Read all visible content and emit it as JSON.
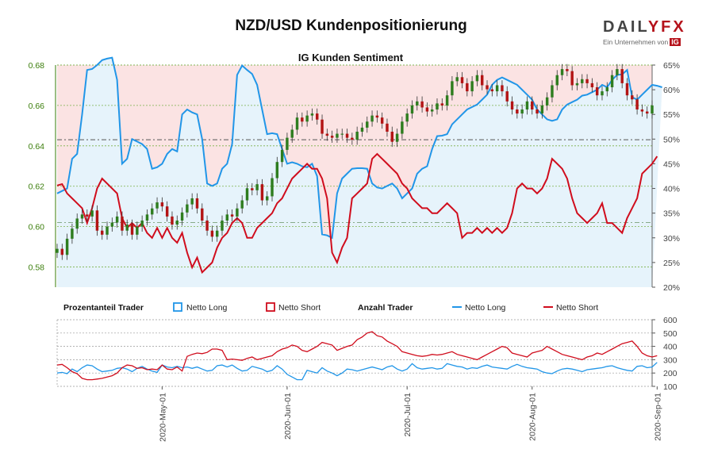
{
  "header": {
    "title": "NZD/USD Kundenpositionierung",
    "logo_text": "DAILYFX",
    "logo_subtext": "Ein Unternehmen von",
    "logo_badge": "IG"
  },
  "colors": {
    "long": "#2196e8",
    "short": "#d00d1d",
    "long_fill": "#e6f3fb",
    "short_fill": "#fbe3e3",
    "candle_up": "#2e7d1f",
    "candle_down": "#b31414",
    "left_axis": "#3a7d0a",
    "grid": "#7bb24a"
  },
  "chart_data": [
    {
      "type": "line",
      "title": "IG Kunden Sentiment",
      "price_axis": {
        "ylim": [
          0.57,
          0.68
        ],
        "ticks": [
          0.58,
          0.6,
          0.62,
          0.64,
          0.66,
          0.68
        ]
      },
      "percent_axis": {
        "ylim": [
          20,
          65
        ],
        "ticks": [
          "20%",
          "25%",
          "30%",
          "35%",
          "40%",
          "45%",
          "50%",
          "55%",
          "60%",
          "65%"
        ]
      },
      "reference_lines": {
        "price": 0.643,
        "percent": 50,
        "price_low": 0.602
      },
      "close": [
        0.589,
        0.586,
        0.594,
        0.599,
        0.604,
        0.606,
        0.605,
        0.608,
        0.598,
        0.596,
        0.6,
        0.602,
        0.605,
        0.598,
        0.601,
        0.596,
        0.6,
        0.603,
        0.606,
        0.609,
        0.612,
        0.61,
        0.605,
        0.601,
        0.603,
        0.607,
        0.611,
        0.614,
        0.609,
        0.603,
        0.598,
        0.595,
        0.598,
        0.603,
        0.606,
        0.605,
        0.609,
        0.613,
        0.619,
        0.618,
        0.621,
        0.613,
        0.615,
        0.624,
        0.632,
        0.638,
        0.644,
        0.648,
        0.654,
        0.652,
        0.655,
        0.656,
        0.653,
        0.646,
        0.645,
        0.644,
        0.646,
        0.646,
        0.644,
        0.643,
        0.647,
        0.649,
        0.652,
        0.655,
        0.654,
        0.651,
        0.647,
        0.642,
        0.646,
        0.652,
        0.656,
        0.66,
        0.662,
        0.659,
        0.657,
        0.658,
        0.661,
        0.66,
        0.665,
        0.672,
        0.674,
        0.671,
        0.667,
        0.672,
        0.675,
        0.67,
        0.668,
        0.667,
        0.67,
        0.667,
        0.662,
        0.658,
        0.656,
        0.658,
        0.662,
        0.658,
        0.656,
        0.66,
        0.664,
        0.67,
        0.675,
        0.678,
        0.677,
        0.67,
        0.671,
        0.673,
        0.671,
        0.669,
        0.665,
        0.667,
        0.669,
        0.675,
        0.678,
        0.671,
        0.665,
        0.663,
        0.658,
        0.657,
        0.656,
        0.66
      ],
      "series": [
        {
          "name": "Netto Long",
          "values": [
            39,
            39.5,
            40,
            46,
            47,
            55,
            64,
            64.2,
            65,
            66,
            66.3,
            66.5,
            62,
            45,
            46,
            50,
            49.5,
            49,
            48,
            44,
            44.3,
            45,
            47,
            48,
            47.5,
            55,
            56,
            55.4,
            55,
            50,
            41,
            40.5,
            41,
            44,
            45,
            49,
            63,
            64.9,
            64,
            63.2,
            61,
            56,
            51,
            51.2,
            51,
            48,
            45,
            45.3,
            45,
            44.5,
            44.3,
            45,
            42.5,
            30.7,
            30.5,
            30,
            39,
            42,
            43,
            44,
            44.1,
            44.1,
            44,
            41,
            40.2,
            40,
            40.5,
            41,
            40,
            38,
            39,
            40,
            43,
            44,
            44.5,
            48,
            50.6,
            50.7,
            51,
            53,
            54,
            55,
            56,
            56.5,
            57,
            58,
            59,
            61,
            62,
            62.5,
            62,
            61.5,
            61,
            60,
            59,
            58,
            56,
            55,
            54,
            53.7,
            54,
            56,
            57,
            57.5,
            58,
            58.8,
            59,
            59.5,
            60,
            61,
            60.5,
            62,
            63,
            63.1,
            64,
            58.5,
            58,
            59,
            60,
            61,
            60.8,
            60.5
          ]
        },
        {
          "name": "Netto Short",
          "values": [
            40.6,
            40.9,
            39,
            38,
            37,
            36,
            33,
            36,
            40,
            42,
            41,
            40,
            39,
            34,
            32,
            33,
            32,
            33,
            31,
            30,
            32,
            30,
            32,
            30,
            29,
            31,
            27,
            24,
            26,
            23,
            24,
            25,
            28,
            30,
            31,
            33,
            34,
            33,
            30,
            30,
            32,
            33,
            34,
            35,
            37,
            38,
            40,
            42,
            43,
            44,
            45,
            44,
            44,
            42,
            38,
            27,
            25,
            28,
            30,
            38,
            39,
            40,
            41,
            46,
            47,
            46,
            45,
            44,
            43,
            41,
            40,
            38,
            37,
            36,
            36,
            35,
            35,
            36,
            37,
            36,
            35,
            30,
            31,
            31,
            32,
            31,
            32,
            31,
            32,
            31,
            32,
            35,
            40,
            41,
            40,
            40,
            39,
            40,
            42,
            46,
            45,
            44,
            42,
            38,
            35,
            34,
            33,
            34,
            35,
            37,
            33,
            33,
            32,
            31,
            34,
            36,
            38,
            43,
            44,
            45,
            46.5
          ]
        }
      ]
    },
    {
      "type": "line",
      "title": "Anzahl Trader",
      "ylim": [
        100,
        600
      ],
      "yticks": [
        100,
        200,
        300,
        400,
        500,
        600
      ],
      "series": [
        {
          "name": "Netto Long",
          "values": [
            200,
            205,
            195,
            230,
            210,
            240,
            260,
            255,
            230,
            210,
            215,
            220,
            235,
            240,
            230,
            210,
            235,
            250,
            230,
            215,
            205,
            260,
            245,
            240,
            250,
            240,
            245,
            235,
            245,
            230,
            215,
            220,
            255,
            260,
            245,
            260,
            235,
            215,
            220,
            250,
            240,
            230,
            210,
            220,
            255,
            230,
            190,
            170,
            150,
            150,
            220,
            210,
            200,
            240,
            215,
            200,
            180,
            200,
            230,
            225,
            215,
            225,
            235,
            245,
            235,
            225,
            245,
            255,
            230,
            215,
            230,
            270,
            240,
            230,
            235,
            240,
            230,
            235,
            270,
            260,
            250,
            245,
            230,
            240,
            235,
            250,
            260,
            245,
            240,
            235,
            230,
            250,
            265,
            250,
            240,
            235,
            230,
            210,
            200,
            195,
            215,
            230,
            235,
            230,
            220,
            210,
            225,
            230,
            235,
            240,
            250,
            255,
            240,
            230,
            220,
            215,
            250,
            255,
            240,
            245,
            280
          ]
        },
        {
          "name": "Netto Short",
          "values": [
            260,
            265,
            240,
            210,
            195,
            160,
            150,
            150,
            155,
            160,
            170,
            180,
            200,
            240,
            260,
            255,
            235,
            240,
            225,
            230,
            225,
            260,
            230,
            225,
            245,
            215,
            325,
            340,
            350,
            345,
            355,
            380,
            380,
            370,
            300,
            305,
            300,
            295,
            310,
            320,
            300,
            310,
            320,
            330,
            360,
            380,
            390,
            410,
            400,
            370,
            360,
            380,
            400,
            430,
            420,
            410,
            370,
            385,
            400,
            410,
            450,
            470,
            500,
            510,
            480,
            470,
            440,
            420,
            400,
            360,
            350,
            340,
            330,
            325,
            330,
            340,
            335,
            340,
            350,
            360,
            340,
            330,
            320,
            310,
            300,
            320,
            340,
            360,
            380,
            400,
            390,
            350,
            340,
            330,
            320,
            350,
            360,
            370,
            400,
            380,
            360,
            340,
            330,
            320,
            310,
            300,
            320,
            330,
            350,
            340,
            360,
            380,
            400,
            420,
            430,
            440,
            400,
            350,
            330,
            320,
            330
          ]
        }
      ],
      "legend": {
        "section_label_pct": "Prozentanteil Trader",
        "section_label_count": "Anzahl Trader",
        "long": "Netto Long",
        "short": "Netto Short"
      }
    }
  ],
  "x_axis": {
    "labels": [
      "2020-May-01",
      "2020-Jun-01",
      "2020-Jul-01",
      "2020-Aug-01",
      "2020-Sep-01"
    ],
    "label_index": [
      21,
      46,
      70,
      95,
      120
    ]
  }
}
